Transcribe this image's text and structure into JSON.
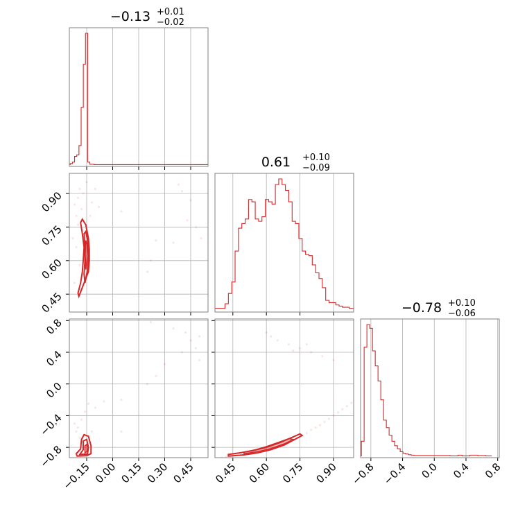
{
  "chart_data": {
    "type": "corner",
    "parameters": [
      {
        "title_main": "−0.13",
        "title_sup": "+0.01",
        "title_sub": "−0.02",
        "range": [
          -0.25,
          0.55
        ],
        "ticks": [
          -0.15,
          0.0,
          0.15,
          0.3,
          0.45
        ],
        "tick_labels": [
          "−0.15",
          "0.00",
          "0.15",
          "0.30",
          "0.45"
        ],
        "hist": {
          "edges": [
            -0.245,
            -0.2324,
            -0.2198,
            -0.2072,
            -0.1946,
            -0.182,
            -0.1694,
            -0.1568,
            -0.1442,
            -0.1316,
            -0.119,
            -0.1064,
            -0.0938,
            -0.0812,
            0.55
          ],
          "counts": [
            2,
            4,
            12,
            14,
            27,
            80,
            140,
            183,
            4,
            1,
            1,
            0.5,
            0.5,
            0.5
          ]
        }
      },
      {
        "title_main": "0.61",
        "title_sup": "+0.10",
        "title_sub": "−0.09",
        "range": [
          0.37,
          0.99
        ],
        "ticks": [
          0.45,
          0.6,
          0.75,
          0.9
        ],
        "tick_labels": [
          "0.45",
          "0.60",
          "0.75",
          "0.90"
        ],
        "hist": {
          "edges": [
            0.37,
            0.385,
            0.4,
            0.415,
            0.43,
            0.445,
            0.46,
            0.475,
            0.49,
            0.505,
            0.52,
            0.535,
            0.55,
            0.565,
            0.58,
            0.595,
            0.61,
            0.625,
            0.64,
            0.655,
            0.67,
            0.685,
            0.7,
            0.715,
            0.73,
            0.745,
            0.76,
            0.775,
            0.79,
            0.805,
            0.82,
            0.835,
            0.85,
            0.865,
            0.88,
            0.895,
            0.91,
            0.925,
            0.94,
            0.955,
            0.97,
            0.99
          ],
          "counts": [
            2,
            2,
            2,
            6,
            15,
            25,
            52,
            72,
            76,
            80,
            97,
            95,
            80,
            78,
            82,
            97,
            95,
            93,
            110,
            115,
            110,
            105,
            95,
            78,
            76,
            63,
            52,
            49,
            48,
            40,
            33,
            28,
            20,
            9,
            7,
            7,
            5,
            4,
            3,
            3,
            2
          ]
        }
      },
      {
        "title_main": "−0.78",
        "title_sup": "+0.10",
        "title_sub": "−0.06",
        "range": [
          -0.93,
          0.82
        ],
        "ticks": [
          -0.8,
          -0.4,
          0.0,
          0.4,
          0.8
        ],
        "tick_labels": [
          "−0.8",
          "−0.4",
          "0.0",
          "0.4",
          "0.8"
        ],
        "hist": {
          "edges": [
            -0.92,
            -0.885,
            -0.85,
            -0.815,
            -0.78,
            -0.745,
            -0.71,
            -0.675,
            -0.64,
            -0.605,
            -0.57,
            -0.535,
            -0.5,
            -0.465,
            -0.43,
            -0.395,
            -0.36,
            -0.325,
            -0.29,
            -0.255,
            0.2,
            0.3,
            0.35,
            0.45,
            0.55,
            0.65,
            0.72
          ],
          "counts": [
            20,
            145,
            175,
            170,
            140,
            120,
            100,
            75,
            48,
            38,
            28,
            20,
            14,
            10,
            6,
            4,
            3,
            2,
            1.5,
            1,
            0.5,
            1.5,
            0.5,
            1.5,
            1,
            0.5
          ]
        }
      }
    ],
    "pairs": {
      "y1_vs_x0": {
        "contours": [
          [
            [
              -0.195,
              0.44
            ],
            [
              -0.18,
              0.47
            ],
            [
              -0.16,
              0.51
            ],
            [
              -0.14,
              0.55
            ],
            [
              -0.135,
              0.6
            ],
            [
              -0.135,
              0.65
            ],
            [
              -0.14,
              0.7
            ],
            [
              -0.155,
              0.76
            ],
            [
              -0.175,
              0.785
            ],
            [
              -0.185,
              0.77
            ],
            [
              -0.175,
              0.72
            ],
            [
              -0.165,
              0.66
            ],
            [
              -0.17,
              0.6
            ],
            [
              -0.175,
              0.55
            ],
            [
              -0.185,
              0.5
            ],
            [
              -0.2,
              0.455
            ]
          ],
          [
            [
              -0.16,
              0.5
            ],
            [
              -0.145,
              0.56
            ],
            [
              -0.14,
              0.62
            ],
            [
              -0.145,
              0.69
            ],
            [
              -0.155,
              0.73
            ],
            [
              -0.165,
              0.72
            ],
            [
              -0.16,
              0.66
            ],
            [
              -0.16,
              0.6
            ],
            [
              -0.165,
              0.54
            ]
          ],
          [
            [
              -0.155,
              0.56
            ],
            [
              -0.148,
              0.61
            ],
            [
              -0.148,
              0.67
            ],
            [
              -0.155,
              0.69
            ],
            [
              -0.158,
              0.63
            ]
          ]
        ],
        "scatter": [
          [
            -0.21,
            0.8
          ],
          [
            -0.2,
            0.88
          ],
          [
            -0.19,
            0.92
          ],
          [
            -0.22,
            0.85
          ],
          [
            -0.18,
            0.83
          ],
          [
            -0.17,
            0.9
          ],
          [
            -0.15,
            0.95
          ],
          [
            -0.2,
            0.76
          ],
          [
            -0.23,
            0.7
          ],
          [
            -0.12,
            0.86
          ],
          [
            -0.1,
            0.92
          ],
          [
            -0.08,
            0.84
          ],
          [
            -0.13,
            0.8
          ],
          [
            -0.21,
            0.66
          ],
          [
            -0.19,
            0.58
          ],
          [
            -0.22,
            0.5
          ],
          [
            0.05,
            0.82
          ],
          [
            0.4,
            0.91
          ],
          [
            0.45,
            0.87
          ],
          [
            0.48,
            0.75
          ],
          [
            0.51,
            0.7
          ],
          [
            0.43,
            0.78
          ],
          [
            0.25,
            0.69
          ],
          [
            0.22,
            0.6
          ],
          [
            0.2,
            0.55
          ],
          [
            0.35,
            0.68
          ],
          [
            0.3,
            0.99
          ],
          [
            0.38,
            0.94
          ]
        ]
      },
      "y2_vs_x0": {
        "contours": [
          [
            [
              -0.205,
              -0.91
            ],
            [
              -0.15,
              -0.905
            ],
            [
              -0.125,
              -0.88
            ],
            [
              -0.125,
              -0.78
            ],
            [
              -0.14,
              -0.66
            ],
            [
              -0.165,
              -0.64
            ],
            [
              -0.18,
              -0.7
            ],
            [
              -0.185,
              -0.82
            ],
            [
              -0.21,
              -0.88
            ]
          ],
          [
            [
              -0.19,
              -0.89
            ],
            [
              -0.145,
              -0.885
            ],
            [
              -0.14,
              -0.8
            ],
            [
              -0.15,
              -0.7
            ],
            [
              -0.17,
              -0.72
            ],
            [
              -0.17,
              -0.83
            ]
          ],
          [
            [
              -0.16,
              -0.87
            ],
            [
              -0.148,
              -0.85
            ],
            [
              -0.148,
              -0.76
            ],
            [
              -0.16,
              -0.78
            ]
          ]
        ],
        "scatter": [
          [
            -0.2,
            -0.55
          ],
          [
            -0.18,
            -0.45
          ],
          [
            -0.16,
            -0.35
          ],
          [
            -0.14,
            -0.25
          ],
          [
            -0.1,
            -0.3
          ],
          [
            -0.05,
            -0.22
          ],
          [
            0.05,
            -0.2
          ],
          [
            0.2,
            0.0
          ],
          [
            0.25,
            0.1
          ],
          [
            0.3,
            0.25
          ],
          [
            0.4,
            0.4
          ],
          [
            0.45,
            0.55
          ],
          [
            0.5,
            0.6
          ],
          [
            0.42,
            0.65
          ],
          [
            0.35,
            0.7
          ],
          [
            0.48,
            0.45
          ],
          [
            0.22,
            0.78
          ],
          [
            0.5,
            0.3
          ],
          [
            0.05,
            -0.6
          ],
          [
            -0.22,
            -0.5
          ],
          [
            -0.21,
            -0.6
          ],
          [
            -0.19,
            -0.68
          ],
          [
            -0.12,
            -0.6
          ]
        ]
      },
      "y2_vs_x1": {
        "contours": [
          [
            [
              0.43,
              -0.91
            ],
            [
              0.5,
              -0.895
            ],
            [
              0.56,
              -0.87
            ],
            [
              0.62,
              -0.83
            ],
            [
              0.68,
              -0.77
            ],
            [
              0.72,
              -0.71
            ],
            [
              0.76,
              -0.65
            ],
            [
              0.75,
              -0.63
            ],
            [
              0.71,
              -0.68
            ],
            [
              0.66,
              -0.74
            ],
            [
              0.6,
              -0.8
            ],
            [
              0.54,
              -0.84
            ],
            [
              0.48,
              -0.87
            ],
            [
              0.43,
              -0.89
            ]
          ],
          [
            [
              0.5,
              -0.88
            ],
            [
              0.56,
              -0.855
            ],
            [
              0.62,
              -0.815
            ],
            [
              0.68,
              -0.755
            ],
            [
              0.72,
              -0.7
            ],
            [
              0.7,
              -0.69
            ],
            [
              0.65,
              -0.74
            ],
            [
              0.6,
              -0.79
            ],
            [
              0.55,
              -0.83
            ],
            [
              0.5,
              -0.86
            ]
          ]
        ],
        "scatter": [
          [
            0.4,
            -0.93
          ],
          [
            0.42,
            -0.92
          ],
          [
            0.44,
            -0.915
          ],
          [
            0.78,
            -0.62
          ],
          [
            0.8,
            -0.58
          ],
          [
            0.82,
            -0.55
          ],
          [
            0.84,
            -0.52
          ],
          [
            0.86,
            -0.48
          ],
          [
            0.88,
            -0.44
          ],
          [
            0.9,
            -0.4
          ],
          [
            0.92,
            -0.36
          ],
          [
            0.94,
            -0.32
          ],
          [
            0.96,
            -0.28
          ],
          [
            0.98,
            -0.24
          ],
          [
            0.6,
            0.65
          ],
          [
            0.62,
            0.6
          ],
          [
            0.65,
            0.55
          ],
          [
            0.7,
            0.5
          ],
          [
            0.75,
            0.45
          ],
          [
            0.8,
            0.4
          ],
          [
            0.85,
            0.35
          ],
          [
            0.9,
            0.3
          ],
          [
            0.72,
            0.42
          ],
          [
            0.78,
            0.5
          ]
        ]
      }
    },
    "grid": true
  }
}
